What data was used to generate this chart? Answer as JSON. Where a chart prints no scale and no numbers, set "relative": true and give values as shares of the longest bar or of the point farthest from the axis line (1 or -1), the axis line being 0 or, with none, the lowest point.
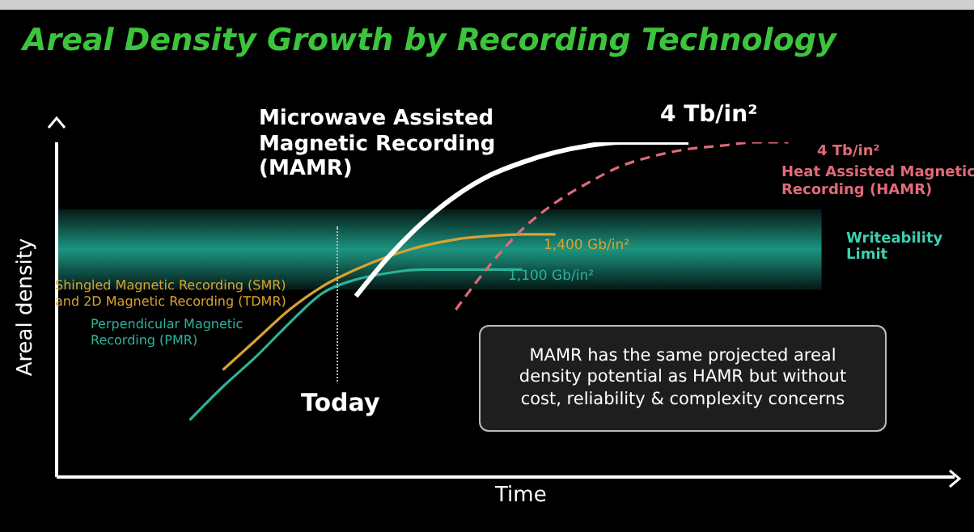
{
  "chart_data": {
    "type": "line",
    "title": "Areal Density Growth by Recording Technology",
    "xlabel": "Time",
    "ylabel": "Areal density",
    "relative": true,
    "marker": "none",
    "categories": [
      null,
      null,
      null,
      null,
      null,
      null,
      null,
      null,
      null,
      null,
      null,
      null,
      null,
      null,
      null,
      null,
      null,
      null,
      null,
      null,
      null,
      null,
      null,
      null,
      null,
      null,
      null,
      null
    ],
    "series": [
      {
        "name": "Perpendicular Magnetic Recording (PMR)",
        "color": "#2bb39a",
        "values": [
          null,
          null,
          null,
          null,
          0.17,
          0.27,
          0.36,
          0.46,
          0.55,
          0.59,
          0.61,
          0.62,
          0.62,
          0.62,
          0.62,
          null,
          null,
          null,
          null,
          null,
          null,
          null,
          null,
          null,
          null,
          null,
          null,
          null
        ]
      },
      {
        "name": "Shingled Magnetic Recording (SMR) and 2D Magnetic Recording (TDMR)",
        "color": "#d9a230",
        "values": [
          null,
          null,
          null,
          null,
          null,
          0.32,
          0.41,
          0.5,
          0.57,
          0.62,
          0.66,
          0.69,
          0.71,
          0.72,
          0.725,
          0.725,
          null,
          null,
          null,
          null,
          null,
          null,
          null,
          null,
          null,
          null,
          null,
          null
        ]
      },
      {
        "name": "Microwave Assisted Magnetic Recording (MAMR)",
        "color": "#ffffff",
        "values": [
          null,
          null,
          null,
          null,
          null,
          null,
          null,
          null,
          null,
          0.54,
          0.66,
          0.76,
          0.84,
          0.9,
          0.94,
          0.97,
          0.99,
          1,
          1,
          1,
          null,
          null,
          null,
          null,
          null,
          null,
          null,
          null
        ]
      },
      {
        "name": "Heat Assisted Magnetic Recording (HAMR)",
        "color": "#e06a78",
        "line_style": "dashed",
        "values": [
          null,
          null,
          null,
          null,
          null,
          null,
          null,
          null,
          null,
          null,
          null,
          null,
          0.5,
          0.63,
          0.74,
          0.82,
          0.88,
          0.93,
          0.96,
          0.98,
          0.99,
          1,
          1,
          null,
          null,
          null,
          null,
          null
        ]
      }
    ],
    "bands": [
      {
        "axis": "y",
        "from": 0.56,
        "to": 0.8,
        "label": "Writeability Limit",
        "color": "#1fa58f"
      }
    ],
    "annotations": [
      "Today",
      "1,400 Gb/in²",
      "1,100 Gb/in²",
      "4 Tb/in²",
      "4 Tb/in²",
      "MAMR has the same projected areal density potential as HAMR but without cost, reliability & complexity concerns"
    ]
  }
}
